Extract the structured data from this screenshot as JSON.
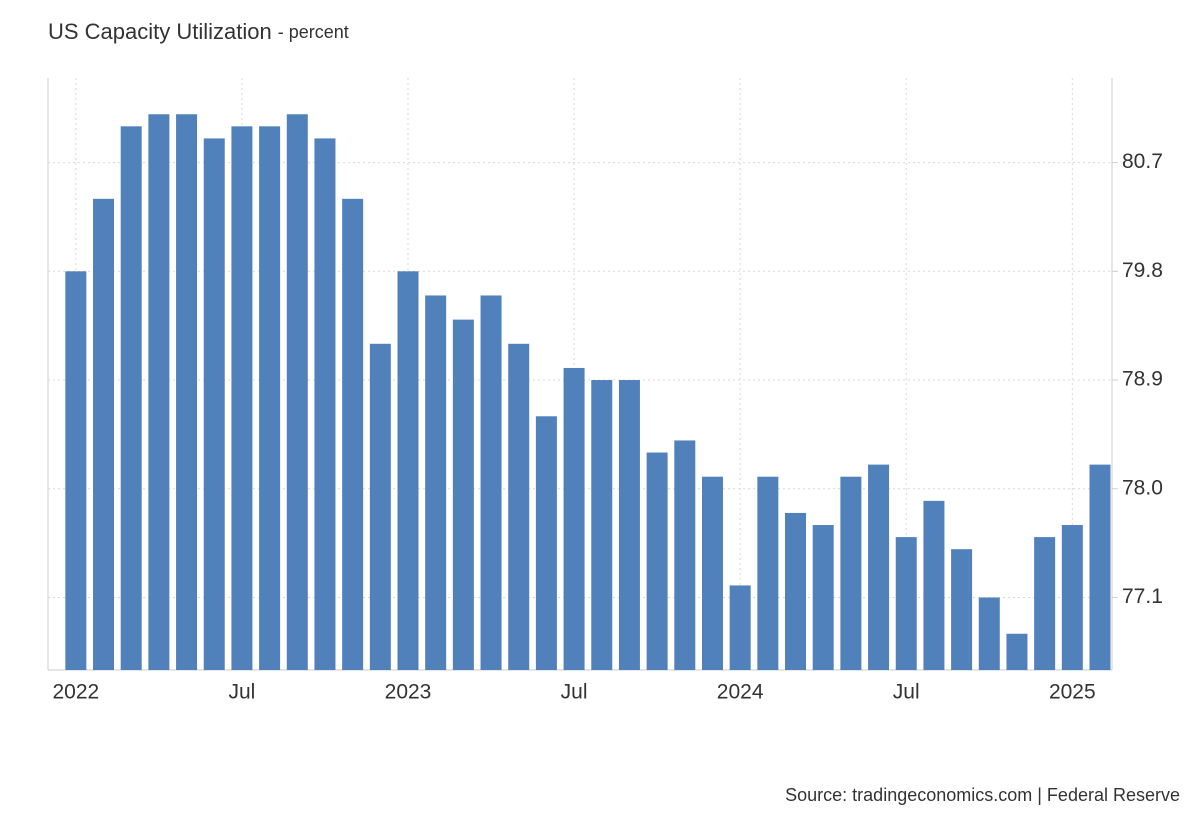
{
  "chart_data": {
    "type": "bar",
    "title": "US Capacity Utilization",
    "subtitle": "- percent",
    "source": "Source: tradingeconomics.com | Federal Reserve",
    "categories": [
      "2022",
      null,
      null,
      null,
      null,
      null,
      "Jul",
      null,
      null,
      null,
      null,
      null,
      "2023",
      null,
      null,
      null,
      null,
      null,
      "Jul",
      null,
      null,
      null,
      null,
      null,
      "2024",
      null,
      null,
      null,
      null,
      null,
      "Jul",
      null,
      null,
      null,
      null,
      null,
      "2025",
      null
    ],
    "values": [
      79.8,
      80.4,
      81.0,
      81.1,
      81.1,
      80.9,
      81.0,
      81.0,
      81.1,
      80.9,
      80.4,
      79.2,
      79.8,
      79.6,
      79.4,
      79.6,
      79.2,
      78.6,
      79.0,
      78.9,
      78.9,
      78.3,
      78.4,
      78.1,
      77.2,
      78.1,
      77.8,
      77.7,
      78.1,
      78.2,
      77.6,
      77.9,
      77.5,
      77.1,
      76.8,
      77.6,
      77.7,
      78.2
    ],
    "color": "#5081bb",
    "ylim": [
      76.5,
      81.4
    ],
    "yticks": [
      {
        "value": 77.1,
        "label": "77.1"
      },
      {
        "value": 78.0,
        "label": "78.0"
      },
      {
        "value": 78.9,
        "label": "78.9"
      },
      {
        "value": 79.8,
        "label": "79.8"
      },
      {
        "value": 80.7,
        "label": "80.7"
      }
    ],
    "grid": true
  }
}
